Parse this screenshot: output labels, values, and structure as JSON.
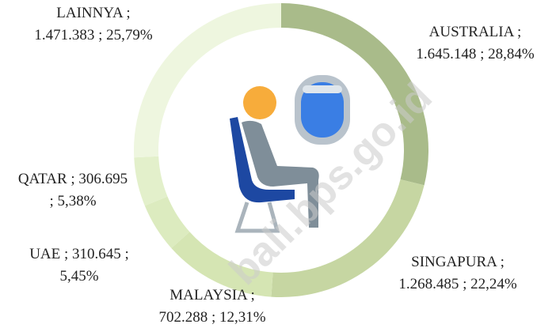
{
  "chart_data": {
    "type": "donut",
    "categories": [
      "AUSTRALIA",
      "SINGAPURA",
      "MALAYSIA",
      "UAE",
      "QATAR",
      "LAINNYA"
    ],
    "values": [
      1645148,
      1268485,
      702288,
      310645,
      306695,
      1471383
    ],
    "value_labels": [
      "1.645.148",
      "1.268.485",
      "702.288",
      "310.645",
      "306.695",
      "1.471.383"
    ],
    "percents": [
      28.84,
      22.24,
      12.31,
      5.45,
      5.38,
      25.79
    ],
    "percent_labels": [
      "28,84%",
      "22,24%",
      "12,31%",
      "5,45%",
      "5,38%",
      "25,79%"
    ],
    "separator": ";",
    "colors": [
      "#a9bb8a",
      "#c6d6a2",
      "#d5e5b3",
      "#dcebbf",
      "#e3f0cb",
      "#eef6df"
    ],
    "watermark": "bali.bps.go.id"
  }
}
